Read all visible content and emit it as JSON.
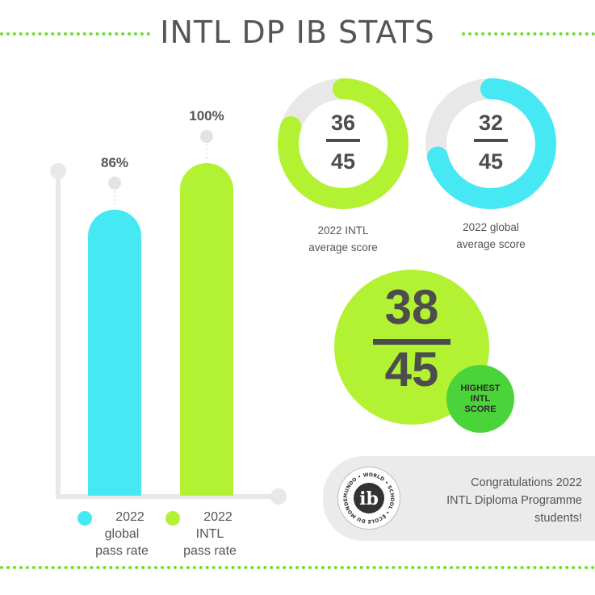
{
  "title": "INTL DP IB STATS",
  "colors": {
    "accent_green": "#b3f232",
    "accent_cyan": "#46e8f4",
    "badge_green": "#4bd33a",
    "dots": "#6ddf2a",
    "track": "#e8e8e8"
  },
  "chart_data": [
    {
      "type": "bar",
      "categories": [
        "2022 global pass rate",
        "2022 INTL pass rate"
      ],
      "values": [
        86,
        100
      ],
      "value_labels": [
        "86%",
        "100%"
      ],
      "ylim": [
        0,
        100
      ],
      "colors": [
        "#46e8f4",
        "#b3f232"
      ],
      "legend": [
        {
          "lines": [
            "2022",
            "global",
            "pass rate"
          ],
          "color": "#46e8f4"
        },
        {
          "lines": [
            "2022",
            "INTL",
            "pass rate"
          ],
          "color": "#b3f232"
        }
      ]
    },
    {
      "type": "pie",
      "name": "2022 INTL average score",
      "numerator": "36",
      "denominator": "45",
      "value": 36,
      "max": 45,
      "color": "#b3f232",
      "label_lines": [
        "2022 INTL",
        "average score"
      ]
    },
    {
      "type": "pie",
      "name": "2022 global average score",
      "numerator": "32",
      "denominator": "45",
      "value": 32,
      "max": 45,
      "color": "#46e8f4",
      "label_lines": [
        "2022 global",
        "average score"
      ]
    }
  ],
  "highlight": {
    "numerator": "38",
    "denominator": "45",
    "badge_lines": [
      "HIGHEST",
      "INTL",
      "SCORE"
    ]
  },
  "congrats": {
    "lines": [
      "Congratulations 2022",
      "INTL Diploma Programme",
      "students!"
    ]
  },
  "logo": {
    "letters": "ib",
    "ring_text": "MUNDO • WORLD • SCHOOL • ÉCOLE DU MONDE • COLEGIO DEL"
  }
}
